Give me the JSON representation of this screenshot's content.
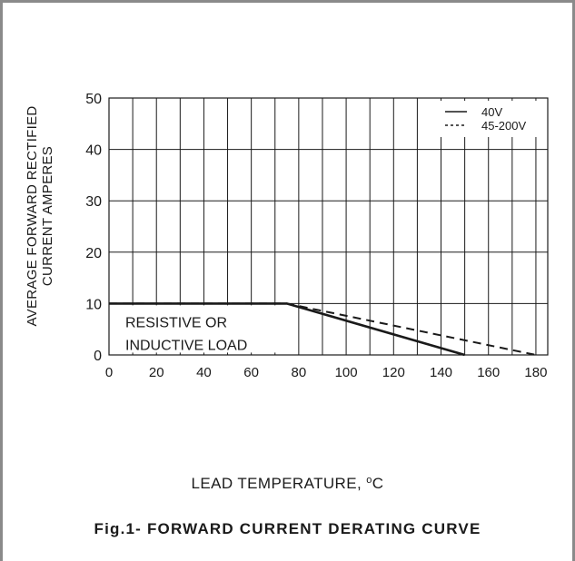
{
  "chart_data": {
    "type": "line",
    "title": "Fig.1- FORWARD CURRENT DERATING CURVE",
    "xlabel": "LEAD TEMPERATURE,",
    "xlabel_unit_sup": "o",
    "xlabel_unit": "C",
    "ylabel": [
      "AVERAGE FORWARD RECTIFIED",
      "CURRENT AMPERES"
    ],
    "xlim": [
      0,
      185
    ],
    "ylim": [
      0,
      50
    ],
    "xticks": [
      0,
      20,
      40,
      60,
      80,
      100,
      120,
      140,
      160,
      180
    ],
    "yticks": [
      0,
      10,
      20,
      30,
      40,
      50
    ],
    "grid": true,
    "legend_position": "top-right",
    "annotation": [
      "RESISTIVE OR",
      "INDUCTIVE LOAD"
    ],
    "series": [
      {
        "name": "40V",
        "style": "solid",
        "x": [
          0,
          75,
          150
        ],
        "y": [
          10,
          10,
          0
        ]
      },
      {
        "name": "45-200V",
        "style": "dashed",
        "x": [
          0,
          75,
          180
        ],
        "y": [
          10,
          10,
          0
        ]
      }
    ]
  },
  "colors": {
    "line": "#1a1a1a",
    "grid": "#1a1a1a",
    "frame": "#8a8a8a"
  }
}
